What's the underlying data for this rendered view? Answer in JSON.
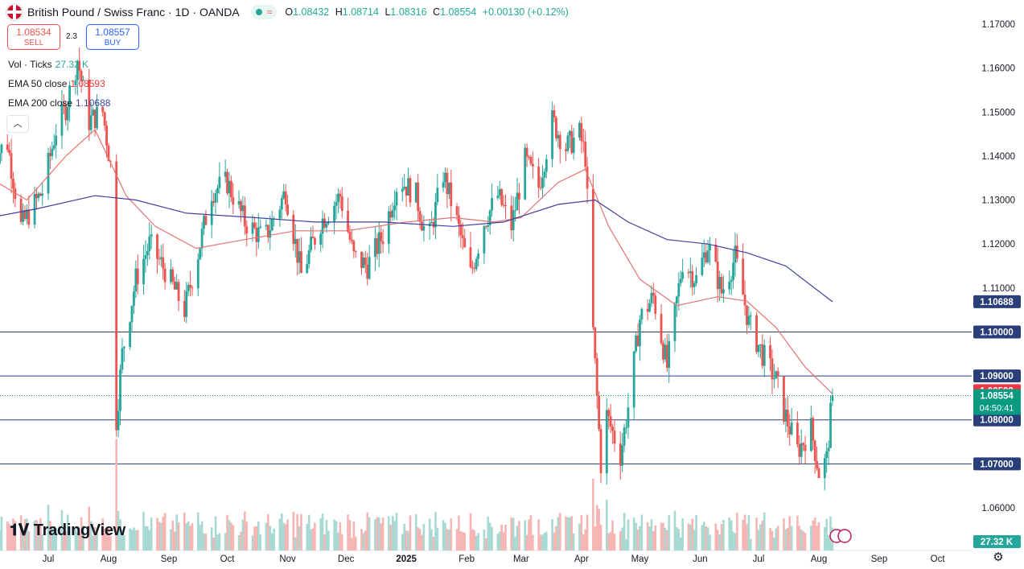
{
  "header": {
    "title": "British Pound / Swiss Franc · 1D · OANDA",
    "ohlc": [
      {
        "k": "O",
        "v": "1.08432"
      },
      {
        "k": "H",
        "v": "1.08714"
      },
      {
        "k": "L",
        "v": "1.08316"
      },
      {
        "k": "C",
        "v": "1.08554"
      }
    ],
    "change": "+0.00130 (+0.12%)"
  },
  "trade": {
    "sell_price": "1.08534",
    "sell_label": "SELL",
    "spread": "2.3",
    "buy_price": "1.08557",
    "buy_label": "BUY"
  },
  "legend": {
    "vol_label": "Vol · Ticks",
    "vol_value": "27.32 K",
    "ema50_label": "EMA 50 close",
    "ema50_value": "1.08593",
    "ema200_label": "EMA 200 close",
    "ema200_value": "1.10688"
  },
  "logo": {
    "text": "TradingView"
  },
  "icons": {
    "flag": "gbp-chf-flag-icon",
    "settings": "gear-icon",
    "collapse": "chevron-up-icon"
  },
  "colors": {
    "up": "#26a69a",
    "down": "#ef5350",
    "ema50": "#e57373",
    "ema200": "#3f3f9f",
    "hline": "#2a3e7a",
    "label_blue": "#2a3e7a",
    "label_red": "#f23645",
    "label_green": "#089981"
  },
  "chart_data": {
    "type": "candlestick",
    "y_ticks": [
      1.17,
      1.16,
      1.15,
      1.14,
      1.13,
      1.12,
      1.11,
      1.06
    ],
    "y_tick_labels": [
      "1.17000",
      "1.16000",
      "1.15000",
      "1.14000",
      "1.13000",
      "1.12000",
      "1.11000",
      "1.06000"
    ],
    "ylim": [
      1.055,
      1.172
    ],
    "x_months": [
      "Jul",
      "Aug",
      "Sep",
      "Oct",
      "Nov",
      "Dec",
      "2025",
      "Feb",
      "Mar",
      "Apr",
      "May",
      "Jun",
      "Jul",
      "Aug",
      "Sep",
      "Oct"
    ],
    "x_month_dates": [
      "2024-07-01",
      "2024-08-01",
      "2024-09-01",
      "2024-10-01",
      "2024-11-01",
      "2024-12-01",
      "2025-01-01",
      "2025-02-01",
      "2025-03-01",
      "2025-04-01",
      "2025-05-01",
      "2025-06-01",
      "2025-07-01",
      "2025-08-01",
      "2025-09-01",
      "2025-10-01"
    ],
    "horizontal_levels": [
      {
        "value": 1.1,
        "label": "1.10000"
      },
      {
        "value": 1.09,
        "label": "1.09000"
      },
      {
        "value": 1.08,
        "label": "1.08000"
      },
      {
        "value": 1.07,
        "label": "1.07000"
      }
    ],
    "price_labels": [
      {
        "value": 1.10688,
        "label": "1.10688",
        "kind": "ema200"
      },
      {
        "value": 1.08593,
        "label": "1.08593",
        "kind": "ema50"
      },
      {
        "value": 1.08554,
        "label": "1.08554",
        "sub": "04:50:41",
        "kind": "last"
      }
    ],
    "volume_label": "27.32 K",
    "price_path": [
      [
        "2024-06-01",
        1.139
      ],
      [
        "2024-06-10",
        1.143
      ],
      [
        "2024-06-17",
        1.124
      ],
      [
        "2024-06-28",
        1.132
      ],
      [
        "2024-07-05",
        1.146
      ],
      [
        "2024-07-10",
        1.151
      ],
      [
        "2024-07-16",
        1.162
      ],
      [
        "2024-07-22",
        1.148
      ],
      [
        "2024-07-29",
        1.15
      ],
      [
        "2024-08-02",
        1.138
      ],
      [
        "2024-08-05",
        1.08
      ],
      [
        "2024-08-08",
        1.095
      ],
      [
        "2024-08-15",
        1.112
      ],
      [
        "2024-08-22",
        1.12
      ],
      [
        "2024-08-30",
        1.114
      ],
      [
        "2024-09-09",
        1.105
      ],
      [
        "2024-09-16",
        1.118
      ],
      [
        "2024-09-23",
        1.132
      ],
      [
        "2024-10-01",
        1.134
      ],
      [
        "2024-10-10",
        1.125
      ],
      [
        "2024-10-20",
        1.121
      ],
      [
        "2024-10-31",
        1.132
      ],
      [
        "2024-11-08",
        1.113
      ],
      [
        "2024-11-18",
        1.125
      ],
      [
        "2024-11-28",
        1.131
      ],
      [
        "2024-12-05",
        1.117
      ],
      [
        "2024-12-12",
        1.115
      ],
      [
        "2024-12-20",
        1.122
      ],
      [
        "2024-12-28",
        1.135
      ],
      [
        "2025-01-06",
        1.131
      ],
      [
        "2025-01-12",
        1.12
      ],
      [
        "2025-01-20",
        1.136
      ],
      [
        "2025-01-27",
        1.125
      ],
      [
        "2025-02-03",
        1.113
      ],
      [
        "2025-02-10",
        1.125
      ],
      [
        "2025-02-17",
        1.131
      ],
      [
        "2025-02-24",
        1.124
      ],
      [
        "2025-03-03",
        1.139
      ],
      [
        "2025-03-10",
        1.133
      ],
      [
        "2025-03-17",
        1.148
      ],
      [
        "2025-03-24",
        1.142
      ],
      [
        "2025-03-31",
        1.145
      ],
      [
        "2025-04-03",
        1.14
      ],
      [
        "2025-04-07",
        1.1
      ],
      [
        "2025-04-11",
        1.07
      ],
      [
        "2025-04-14",
        1.081
      ],
      [
        "2025-04-21",
        1.072
      ],
      [
        "2025-04-25",
        1.083
      ],
      [
        "2025-05-01",
        1.103
      ],
      [
        "2025-05-08",
        1.108
      ],
      [
        "2025-05-15",
        1.092
      ],
      [
        "2025-05-23",
        1.116
      ],
      [
        "2025-05-30",
        1.112
      ],
      [
        "2025-06-05",
        1.12
      ],
      [
        "2025-06-12",
        1.109
      ],
      [
        "2025-06-19",
        1.117
      ],
      [
        "2025-06-26",
        1.102
      ],
      [
        "2025-07-03",
        1.095
      ],
      [
        "2025-07-10",
        1.089
      ],
      [
        "2025-07-14",
        1.082
      ],
      [
        "2025-07-21",
        1.073
      ],
      [
        "2025-07-28",
        1.078
      ],
      [
        "2025-08-01",
        1.068
      ],
      [
        "2025-08-05",
        1.071
      ],
      [
        "2025-08-07",
        1.081
      ],
      [
        "2025-08-08",
        1.0855
      ]
    ],
    "ema50_path": [
      [
        "2024-06-01",
        1.135
      ],
      [
        "2024-06-20",
        1.13
      ],
      [
        "2024-07-10",
        1.14
      ],
      [
        "2024-07-25",
        1.146
      ],
      [
        "2024-08-10",
        1.131
      ],
      [
        "2024-08-25",
        1.124
      ],
      [
        "2024-09-15",
        1.119
      ],
      [
        "2024-10-10",
        1.121
      ],
      [
        "2024-11-05",
        1.123
      ],
      [
        "2024-12-01",
        1.123
      ],
      [
        "2025-01-01",
        1.125
      ],
      [
        "2025-01-25",
        1.126
      ],
      [
        "2025-02-15",
        1.125
      ],
      [
        "2025-03-01",
        1.126
      ],
      [
        "2025-03-20",
        1.134
      ],
      [
        "2025-04-03",
        1.137
      ],
      [
        "2025-04-15",
        1.124
      ],
      [
        "2025-05-01",
        1.112
      ],
      [
        "2025-05-20",
        1.106
      ],
      [
        "2025-06-10",
        1.108
      ],
      [
        "2025-06-25",
        1.107
      ],
      [
        "2025-07-10",
        1.101
      ],
      [
        "2025-07-25",
        1.092
      ],
      [
        "2025-08-08",
        1.08593
      ]
    ],
    "ema200_path": [
      [
        "2024-06-01",
        1.126
      ],
      [
        "2024-06-25",
        1.128
      ],
      [
        "2024-07-25",
        1.131
      ],
      [
        "2024-08-15",
        1.13
      ],
      [
        "2024-09-10",
        1.127
      ],
      [
        "2024-10-15",
        1.126
      ],
      [
        "2024-11-15",
        1.125
      ],
      [
        "2024-12-20",
        1.125
      ],
      [
        "2025-01-25",
        1.124
      ],
      [
        "2025-02-20",
        1.125
      ],
      [
        "2025-03-20",
        1.129
      ],
      [
        "2025-04-08",
        1.13
      ],
      [
        "2025-04-25",
        1.125
      ],
      [
        "2025-05-15",
        1.121
      ],
      [
        "2025-06-05",
        1.12
      ],
      [
        "2025-06-25",
        1.118
      ],
      [
        "2025-07-15",
        1.115
      ],
      [
        "2025-08-08",
        1.10688
      ]
    ]
  }
}
